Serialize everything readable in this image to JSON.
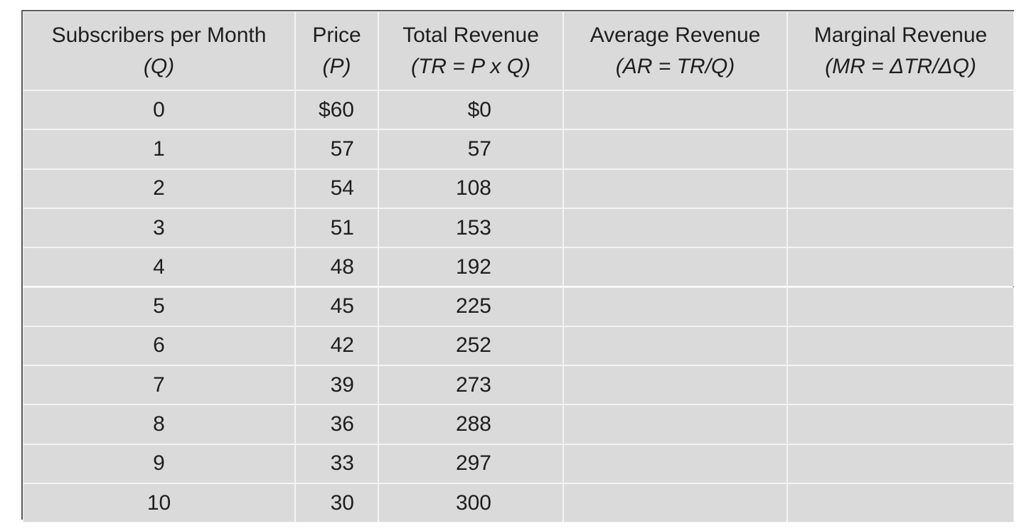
{
  "table": {
    "header": [
      [
        "Subscribers per Month",
        "(Q)"
      ],
      [
        "Price",
        "(P)"
      ],
      [
        "Total Revenue",
        "(TR = P x Q)"
      ],
      [
        "Average Revenue",
        "(AR = TR/Q)"
      ],
      [
        "Marginal Revenue",
        "(MR = ΔTR/ΔQ)"
      ]
    ],
    "rows": [
      [
        0,
        "$60",
        "$0"
      ],
      [
        1,
        57,
        57
      ],
      [
        2,
        54,
        108
      ],
      [
        3,
        51,
        153
      ],
      [
        4,
        48,
        192
      ],
      [
        5,
        45,
        225
      ],
      [
        6,
        42,
        252
      ],
      [
        7,
        39,
        273
      ],
      [
        8,
        36,
        288
      ],
      [
        9,
        33,
        297
      ],
      [
        10,
        30,
        300
      ]
    ]
  }
}
